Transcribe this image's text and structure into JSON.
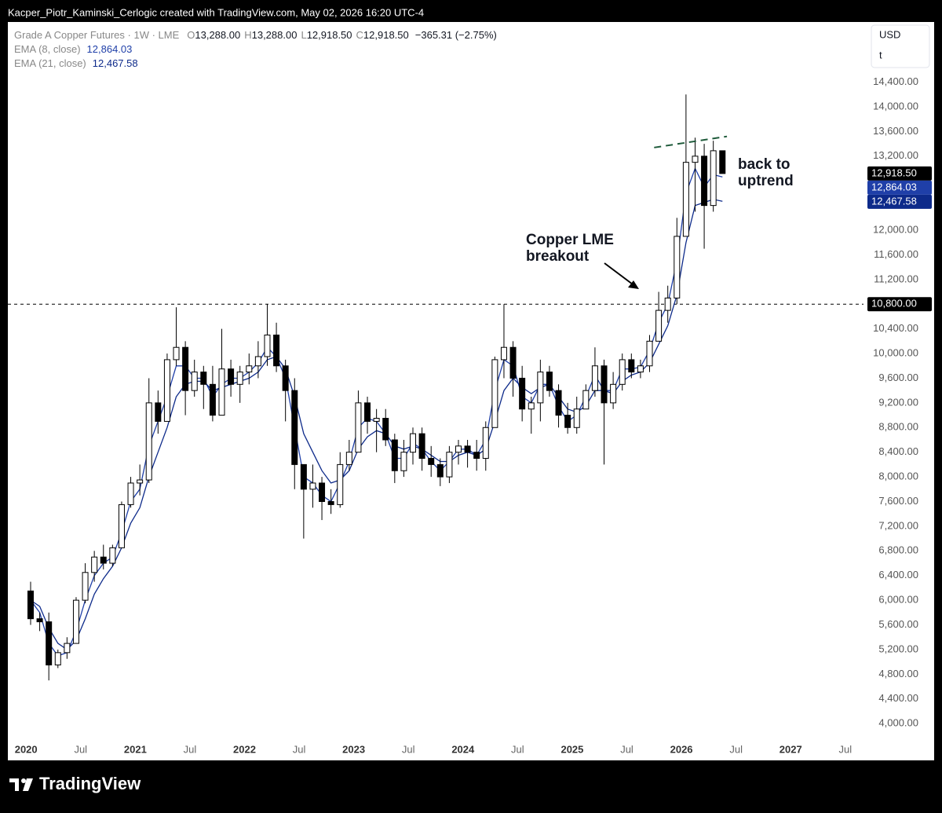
{
  "header": "Kacper_Piotr_Kaminski_Cerlogic created with TradingView.com, May 02, 2026 16:20 UTC-4",
  "chart_data": {
    "type": "candlestick",
    "title": "Grade A Copper Futures · 1W · LME",
    "ohlc_legend": [
      {
        "key": "O",
        "value": "13,288.00"
      },
      {
        "key": "H",
        "value": "13,288.00"
      },
      {
        "key": "L",
        "value": "12,918.50"
      },
      {
        "key": "C",
        "value": "12,918.50"
      }
    ],
    "change": "−365.31 (−2.75%)",
    "currency": "USD",
    "unit": "t",
    "x": [
      "2020-01",
      "2020-02",
      "2020-03",
      "2020-04",
      "2020-05",
      "2020-06",
      "2020-07",
      "2020-08",
      "2020-09",
      "2020-10",
      "2020-11",
      "2020-12",
      "2021-01",
      "2021-02",
      "2021-03",
      "2021-04",
      "2021-05",
      "2021-06",
      "2021-07",
      "2021-08",
      "2021-09",
      "2021-10",
      "2021-11",
      "2021-12",
      "2022-01",
      "2022-02",
      "2022-03",
      "2022-04",
      "2022-05",
      "2022-06",
      "2022-07",
      "2022-08",
      "2022-09",
      "2022-10",
      "2022-11",
      "2022-12",
      "2023-01",
      "2023-02",
      "2023-03",
      "2023-04",
      "2023-05",
      "2023-06",
      "2023-07",
      "2023-08",
      "2023-09",
      "2023-10",
      "2023-11",
      "2023-12",
      "2024-01",
      "2024-02",
      "2024-03",
      "2024-04",
      "2024-05",
      "2024-06",
      "2024-07",
      "2024-08",
      "2024-09",
      "2024-10",
      "2024-11",
      "2024-12",
      "2025-01",
      "2025-02",
      "2025-03",
      "2025-04",
      "2025-05",
      "2025-06",
      "2025-07",
      "2025-08",
      "2025-09",
      "2025-10",
      "2025-11",
      "2025-12",
      "2026-01",
      "2026-02",
      "2026-03",
      "2026-04",
      "2026-05"
    ],
    "candles": {
      "open": [
        6150,
        5700,
        5650,
        4950,
        5150,
        5300,
        6000,
        6450,
        6700,
        6600,
        6850,
        7550,
        7900,
        7950,
        9200,
        8900,
        9900,
        10100,
        9400,
        9700,
        9500,
        9000,
        9750,
        9500,
        9700,
        9800,
        9950,
        10300,
        9800,
        9400,
        8200,
        7800,
        7900,
        7600,
        7550,
        8200,
        8400,
        9200,
        8900,
        8950,
        8600,
        8100,
        8400,
        8700,
        8300,
        8200,
        8000,
        8400,
        8500,
        8400,
        8300,
        8800,
        9900,
        10100,
        9600,
        9100,
        9200,
        9700,
        9400,
        9000,
        8800,
        9100,
        9400,
        9800,
        9200,
        9500,
        9900,
        9700,
        9800,
        10200,
        10700,
        10900,
        11900,
        13100,
        13200,
        12400,
        13288
      ],
      "high": [
        6300,
        5800,
        5800,
        5200,
        5400,
        6050,
        6600,
        6800,
        6900,
        6900,
        7600,
        8000,
        8200,
        9600,
        9400,
        10000,
        10750,
        10200,
        9900,
        9800,
        9800,
        10400,
        9900,
        9800,
        10000,
        10200,
        10800,
        10500,
        9900,
        9600,
        8200,
        8200,
        8000,
        7800,
        8400,
        8600,
        9400,
        9300,
        9100,
        9100,
        8700,
        8600,
        8800,
        8800,
        8500,
        8300,
        8500,
        8600,
        8600,
        8600,
        8900,
        9950,
        10800,
        10200,
        9800,
        9300,
        9900,
        9800,
        9500,
        9200,
        9300,
        9500,
        10100,
        9900,
        9700,
        10000,
        10000,
        9900,
        10300,
        11000,
        11100,
        12200,
        14200,
        13500,
        13400,
        13450,
        13288
      ],
      "low": [
        5600,
        5500,
        4700,
        4900,
        5050,
        5300,
        5950,
        6300,
        6500,
        6550,
        6850,
        7500,
        7700,
        7900,
        8700,
        8900,
        9800,
        9000,
        9300,
        9100,
        8900,
        9000,
        9300,
        9200,
        9500,
        9600,
        9800,
        9700,
        8900,
        7800,
        7000,
        7500,
        7300,
        7400,
        7500,
        8100,
        8400,
        8700,
        8400,
        8500,
        7900,
        8000,
        8200,
        8100,
        8000,
        7850,
        7900,
        8200,
        8150,
        8100,
        8100,
        8800,
        9600,
        9300,
        8900,
        8700,
        8900,
        9300,
        8800,
        8700,
        8700,
        9100,
        9300,
        8200,
        9100,
        9400,
        9600,
        9600,
        9700,
        10200,
        10500,
        10800,
        11900,
        12300,
        11700,
        12300,
        12918.5
      ],
      "close": [
        5700,
        5650,
        4950,
        5150,
        5300,
        6000,
        6450,
        6700,
        6600,
        6850,
        7550,
        7900,
        7950,
        9200,
        8900,
        9900,
        10100,
        9400,
        9700,
        9500,
        9000,
        9750,
        9500,
        9700,
        9800,
        9950,
        10300,
        9800,
        9400,
        8200,
        7800,
        7900,
        7600,
        7550,
        8200,
        8400,
        9200,
        8900,
        8950,
        8600,
        8100,
        8400,
        8700,
        8300,
        8200,
        8000,
        8400,
        8500,
        8400,
        8300,
        8800,
        9900,
        10100,
        9600,
        9100,
        9200,
        9700,
        9400,
        9000,
        8800,
        9100,
        9400,
        9800,
        9200,
        9500,
        9900,
        9700,
        9800,
        10200,
        10700,
        10900,
        11900,
        13100,
        13200,
        12400,
        13288,
        12918.5
      ],
      "up_color": "#ffffff",
      "down_color": "#000000",
      "edge_color": "#000000"
    },
    "series": [
      {
        "name": "EMA (8, close)",
        "color": "#1f3fa8",
        "last_label": "12,864.03",
        "values": [
          6000,
          5800,
          5300,
          5100,
          5150,
          5500,
          6000,
          6400,
          6600,
          6700,
          7100,
          7600,
          7800,
          8500,
          8900,
          9300,
          9800,
          9800,
          9600,
          9600,
          9300,
          9500,
          9600,
          9600,
          9700,
          9850,
          10100,
          9950,
          9600,
          8800,
          8000,
          7900,
          7700,
          7600,
          7900,
          8250,
          8800,
          8950,
          8900,
          8700,
          8300,
          8300,
          8550,
          8450,
          8250,
          8100,
          8250,
          8450,
          8450,
          8350,
          8600,
          9400,
          9900,
          9800,
          9300,
          9200,
          9500,
          9500,
          9150,
          8900,
          9000,
          9300,
          9650,
          9400,
          9400,
          9750,
          9750,
          9780,
          10050,
          10500,
          10800,
          11500,
          12600,
          13000,
          12700,
          12900,
          12864.03
        ]
      },
      {
        "name": "EMA (21, close)",
        "color": "#0d2a8a",
        "last_label": "12,467.58",
        "values": [
          6000,
          5900,
          5550,
          5300,
          5200,
          5350,
          5700,
          6100,
          6350,
          6550,
          6850,
          7250,
          7500,
          8000,
          8400,
          8800,
          9300,
          9500,
          9550,
          9550,
          9400,
          9450,
          9500,
          9550,
          9600,
          9700,
          9900,
          9950,
          9750,
          9300,
          8700,
          8400,
          8100,
          7900,
          7950,
          8100,
          8450,
          8650,
          8750,
          8700,
          8500,
          8450,
          8500,
          8450,
          8350,
          8250,
          8250,
          8350,
          8400,
          8350,
          8450,
          8900,
          9400,
          9600,
          9450,
          9350,
          9450,
          9500,
          9300,
          9100,
          9050,
          9150,
          9400,
          9400,
          9350,
          9550,
          9650,
          9700,
          9850,
          10150,
          10450,
          10950,
          11800,
          12400,
          12450,
          12500,
          12467.58
        ]
      }
    ],
    "xlim": [
      "2019-11",
      "2027-09"
    ],
    "xticks": [
      {
        "value": "2020-01",
        "label": "2020"
      },
      {
        "value": "2020-07",
        "label": "Jul"
      },
      {
        "value": "2021-01",
        "label": "2021"
      },
      {
        "value": "2021-07",
        "label": "Jul"
      },
      {
        "value": "2022-01",
        "label": "2022"
      },
      {
        "value": "2022-07",
        "label": "Jul"
      },
      {
        "value": "2023-01",
        "label": "2023"
      },
      {
        "value": "2023-07",
        "label": "Jul"
      },
      {
        "value": "2024-01",
        "label": "2024"
      },
      {
        "value": "2024-07",
        "label": "Jul"
      },
      {
        "value": "2025-01",
        "label": "2025"
      },
      {
        "value": "2025-07",
        "label": "Jul"
      },
      {
        "value": "2026-01",
        "label": "2026"
      },
      {
        "value": "2026-07",
        "label": "Jul"
      },
      {
        "value": "2027-01",
        "label": "2027"
      },
      {
        "value": "2027-07",
        "label": "Jul"
      }
    ],
    "ylim": [
      3760,
      15350
    ],
    "yticks": [
      {
        "value": 4000,
        "label": "4,000.00"
      },
      {
        "value": 4400,
        "label": "4,400.00"
      },
      {
        "value": 4800,
        "label": "4,800.00"
      },
      {
        "value": 5200,
        "label": "5,200.00"
      },
      {
        "value": 5600,
        "label": "5,600.00"
      },
      {
        "value": 6000,
        "label": "6,000.00"
      },
      {
        "value": 6400,
        "label": "6,400.00"
      },
      {
        "value": 6800,
        "label": "6,800.00"
      },
      {
        "value": 7200,
        "label": "7,200.00"
      },
      {
        "value": 7600,
        "label": "7,600.00"
      },
      {
        "value": 8000,
        "label": "8,000.00"
      },
      {
        "value": 8400,
        "label": "8,400.00"
      },
      {
        "value": 8800,
        "label": "8,800.00"
      },
      {
        "value": 9200,
        "label": "9,200.00"
      },
      {
        "value": 9600,
        "label": "9,600.00"
      },
      {
        "value": 10000,
        "label": "10,000.00"
      },
      {
        "value": 10400,
        "label": "10,400.00"
      },
      {
        "value": 11200,
        "label": "11,200.00"
      },
      {
        "value": 11600,
        "label": "11,600.00"
      },
      {
        "value": 12000,
        "label": "12,000.00"
      },
      {
        "value": 13200,
        "label": "13,200.00"
      },
      {
        "value": 13600,
        "label": "13,600.00"
      },
      {
        "value": 14000,
        "label": "14,000.00"
      },
      {
        "value": 14400,
        "label": "14,400.00"
      }
    ],
    "hlines": [
      {
        "value": 10800,
        "label": "10,800.00"
      }
    ],
    "trendline": {
      "x": [
        "2025-10",
        "2026-06"
      ],
      "y": [
        13340,
        13520
      ],
      "color": "#1e5a3a"
    },
    "annotations": [
      {
        "lines": [
          "Copper LME",
          "breakout"
        ]
      },
      {
        "lines": [
          "back to",
          "uptrend"
        ]
      }
    ]
  },
  "footer": "TradingView"
}
